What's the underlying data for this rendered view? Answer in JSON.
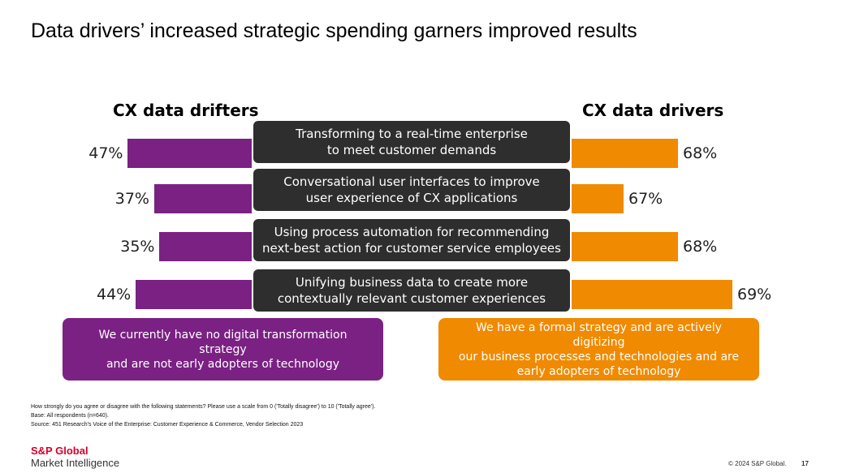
{
  "title": "Data drivers’ increased strategic spending garners improved results",
  "chart_data": {
    "type": "bar",
    "title": "Data drivers’ increased strategic spending garners improved results",
    "categories": [
      "Transforming to a real-time enterprise\nto meet customer demands",
      "Conversational user interfaces to improve\nuser experience of CX applications",
      "Using process automation for recommending\nnext-best action for customer service employees",
      "Unifying business data to create more\ncontextually relevant customer experiences"
    ],
    "series": [
      {
        "name": "CX data drifters",
        "values": [
          47,
          37,
          35,
          44
        ],
        "labels": [
          "47%",
          "37%",
          "35%",
          "44%"
        ]
      },
      {
        "name": "CX data drivers",
        "values": [
          68,
          67,
          68,
          69
        ],
        "labels": [
          "68%",
          "67%",
          "68%",
          "69%"
        ]
      }
    ],
    "colors": {
      "drifters": "#7a2183",
      "drivers": "#f08a00",
      "statement": "#2e2e2e"
    },
    "xlabel": "",
    "ylabel": "",
    "legend": "column headers"
  },
  "descriptions": {
    "drifters": "We currently have no digital transformation strategy\nand are not early adopters of technology",
    "drivers": "We have a formal strategy and are actively digitizing\nour business processes and technologies and are\nearly adopters of technology"
  },
  "footnotes": {
    "question": "How strongly do you agree or disagree with the following statements? Please use a scale from 0 ('Totally disagree') to 10 ('Totally agree').",
    "base": "Base: All respondents (n=640).",
    "source": "Source: 451 Research's Voice of the Enterprise: Customer Experience & Commerce, Vendor Selection 2023"
  },
  "footer": {
    "logo_line1": "S&P Global",
    "logo_line2": "Market Intelligence",
    "copyright": "© 2024 S&P Global.",
    "page": "17"
  }
}
